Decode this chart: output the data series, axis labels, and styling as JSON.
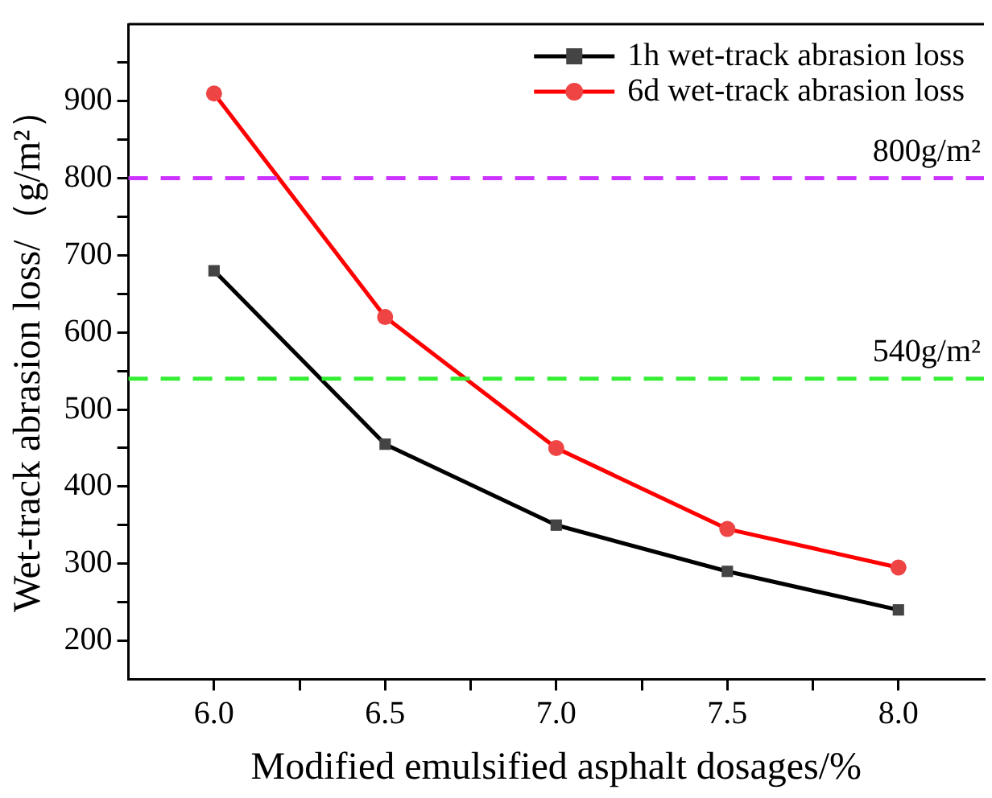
{
  "chart_data": {
    "type": "line",
    "xlabel": "Modified emulsified asphalt dosages/%",
    "ylabel": "Wet-track abrasion loss/（g/m²）",
    "x": [
      6.0,
      6.5,
      7.0,
      7.5,
      8.0
    ],
    "series": [
      {
        "name": "1h wet-track abrasion loss",
        "color": "#000000",
        "marker": "square",
        "values": [
          680,
          455,
          350,
          290,
          240
        ]
      },
      {
        "name": "6d wet-track abrasion loss",
        "color": "#ff0000",
        "marker": "circle",
        "values": [
          910,
          620,
          450,
          345,
          295
        ]
      }
    ],
    "xlim": [
      5.75,
      8.25
    ],
    "xticks": [
      {
        "value": 6.0,
        "label": "6.0"
      },
      {
        "value": 6.25,
        "label": null
      },
      {
        "value": 6.5,
        "label": "6.5"
      },
      {
        "value": 6.75,
        "label": null
      },
      {
        "value": 7.0,
        "label": "7.0"
      },
      {
        "value": 7.25,
        "label": null
      },
      {
        "value": 7.5,
        "label": "7.5"
      },
      {
        "value": 7.75,
        "label": null
      },
      {
        "value": 8.0,
        "label": "8.0"
      }
    ],
    "ylim": [
      150,
      1000
    ],
    "yticks": [
      200,
      {
        "value": 250,
        "label": null
      },
      300,
      {
        "value": 350,
        "label": null
      },
      400,
      {
        "value": 450,
        "label": null
      },
      500,
      {
        "value": 550,
        "label": null
      },
      600,
      {
        "value": 650,
        "label": null
      },
      700,
      {
        "value": 750,
        "label": null
      },
      800,
      {
        "value": 850,
        "label": null
      },
      900,
      {
        "value": 950,
        "label": null
      }
    ],
    "ref_lines": [
      {
        "axis": "y",
        "value": 800,
        "label": "800g/m²",
        "color": "#cc33ff",
        "line_style": "dashed"
      },
      {
        "axis": "y",
        "value": 540,
        "label": "540g/m²",
        "color": "#33ee33",
        "line_style": "dashed"
      }
    ],
    "legend": "top right",
    "grid": false,
    "line_style": "solid"
  }
}
